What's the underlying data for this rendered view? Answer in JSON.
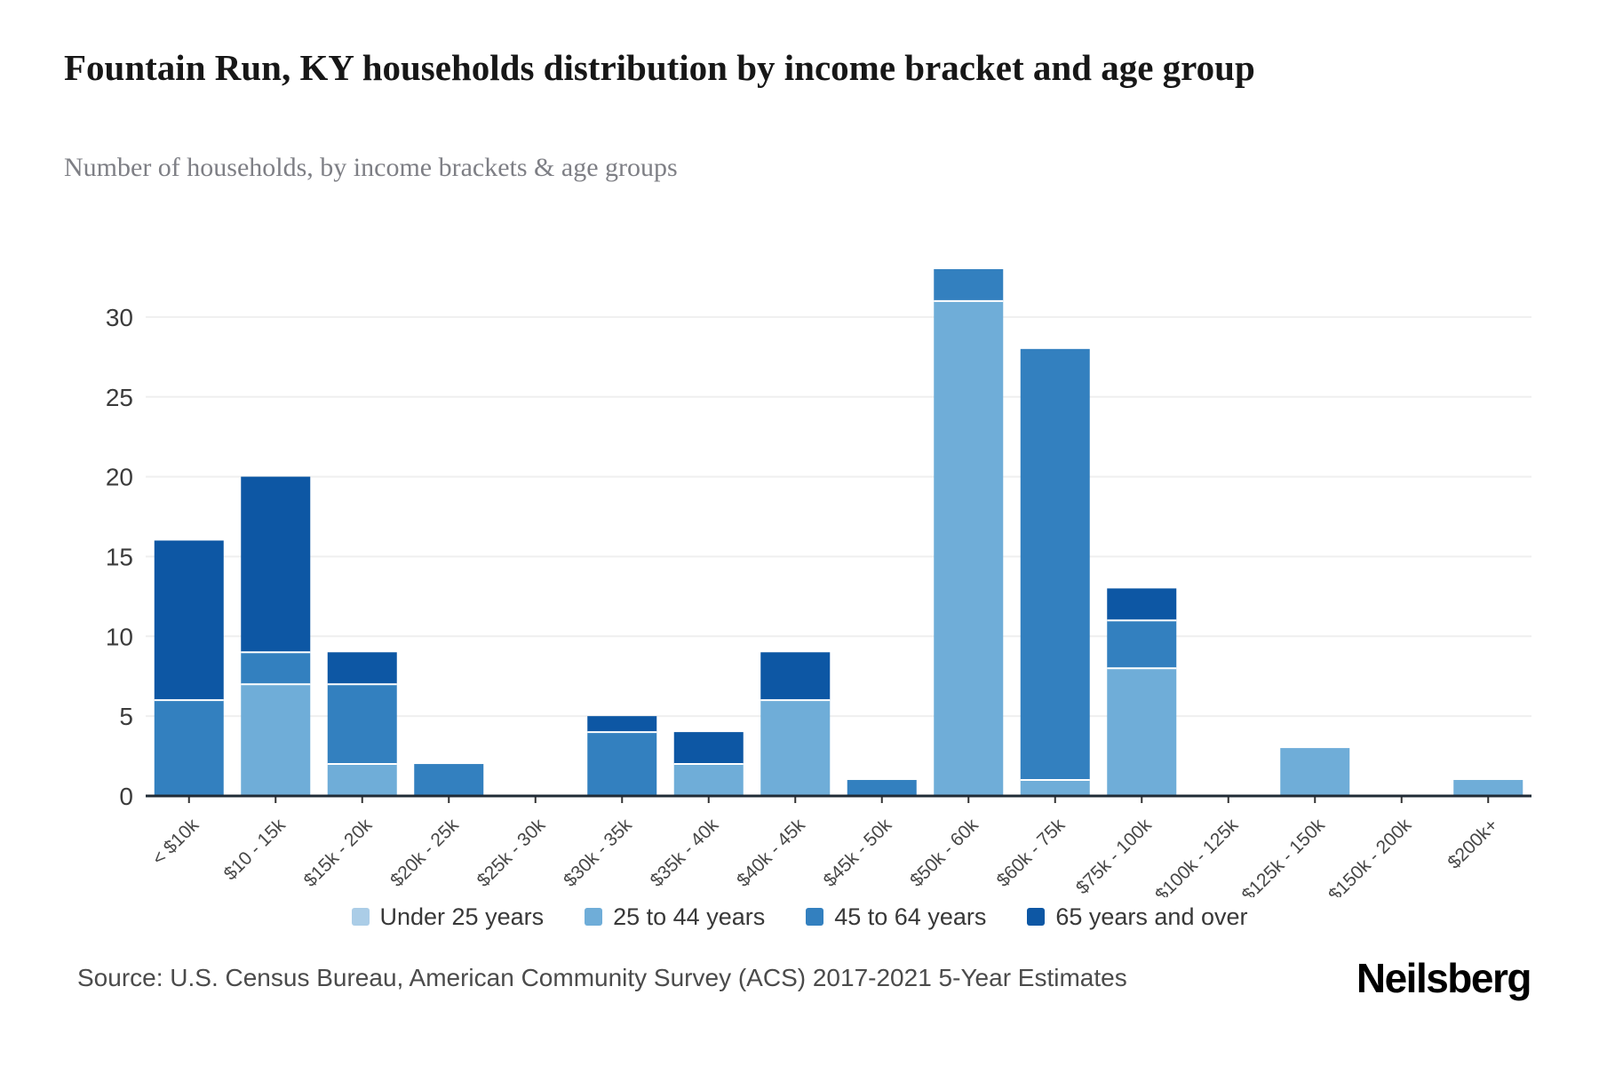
{
  "header": {
    "title": "Fountain Run, KY households distribution by income bracket and age group",
    "subtitle": "Number of households, by income brackets & age groups"
  },
  "footer": {
    "source": "Source: U.S. Census Bureau, American Community Survey (ACS) 2017-2021 5-Year Estimates",
    "brand": "Neilsberg"
  },
  "chart_data": {
    "type": "bar",
    "stacked": true,
    "title": "Fountain Run, KY households distribution by income bracket and age group",
    "subtitle": "Number of households, by income brackets & age groups",
    "xlabel": "",
    "ylabel": "",
    "categories": [
      "< $10k",
      "$10 - 15k",
      "$15k - 20k",
      "$20k - 25k",
      "$25k - 30k",
      "$30k - 35k",
      "$35k - 40k",
      "$40k - 45k",
      "$45k - 50k",
      "$50k - 60k",
      "$60k - 75k",
      "$75k - 100k",
      "$100k - 125k",
      "$125k - 150k",
      "$150k - 200k",
      "$200k+"
    ],
    "series": [
      {
        "name": "Under 25 years",
        "color": "#abcde7",
        "values": [
          0,
          0,
          0,
          0,
          0,
          0,
          0,
          0,
          0,
          0,
          0,
          0,
          0,
          0,
          0,
          0
        ]
      },
      {
        "name": "25 to 44 years",
        "color": "#6fadd8",
        "values": [
          0,
          7,
          2,
          0,
          0,
          0,
          2,
          6,
          0,
          31,
          1,
          8,
          0,
          3,
          0,
          1
        ]
      },
      {
        "name": "45 to 64 years",
        "color": "#3380bf",
        "values": [
          6,
          2,
          5,
          2,
          0,
          4,
          0,
          0,
          1,
          2,
          27,
          3,
          0,
          0,
          0,
          0
        ]
      },
      {
        "name": "65 years and over",
        "color": "#0d57a4",
        "values": [
          10,
          11,
          2,
          0,
          0,
          1,
          2,
          3,
          0,
          0,
          0,
          2,
          0,
          0,
          0,
          0
        ]
      }
    ],
    "totals": [
      16,
      20,
      9,
      2,
      0,
      5,
      4,
      9,
      1,
      33,
      28,
      13,
      0,
      3,
      0,
      1
    ],
    "yticks": [
      0,
      5,
      10,
      15,
      20,
      25,
      30
    ],
    "ylim": [
      0,
      33.5
    ],
    "grid": true,
    "legend_position": "bottom",
    "colors": {
      "gridline": "#efefef",
      "axis_line": "#202b36",
      "ytick_text": "#3b3b3b",
      "xtick_text": "#474747"
    }
  }
}
